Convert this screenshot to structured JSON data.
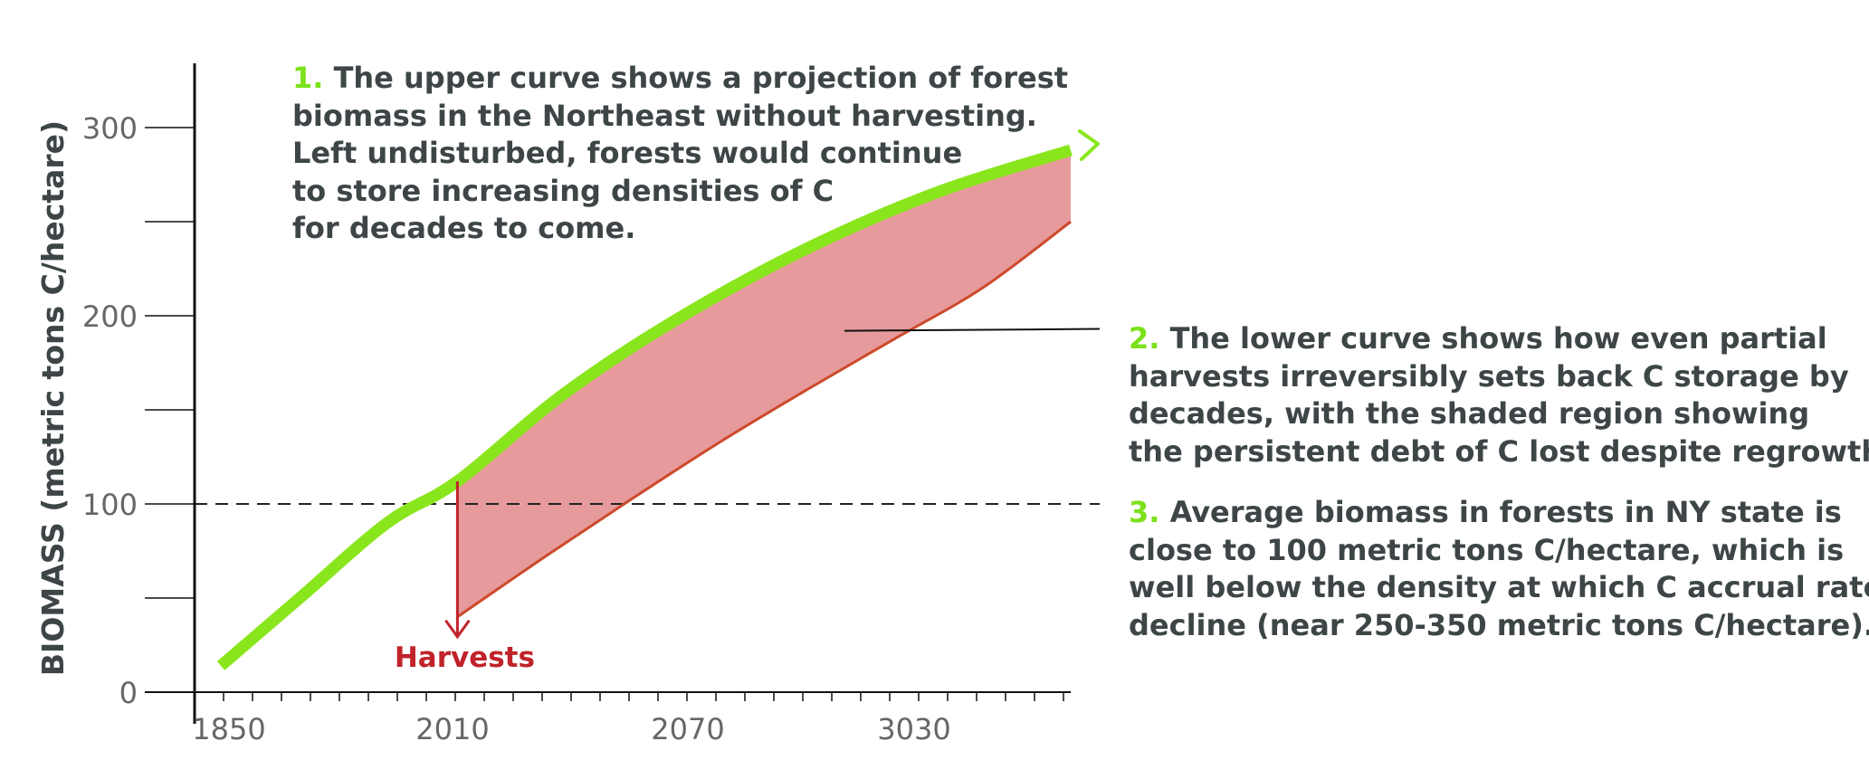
{
  "chart_data": {
    "type": "area",
    "title": "",
    "xlabel": "",
    "ylabel": "BIOMASS (metric tons C/hectare)",
    "x_ticks": [
      "1850",
      "2010",
      "2070",
      "3030"
    ],
    "y_ticks": [
      0,
      100,
      200,
      300
    ],
    "ylim": [
      0,
      300
    ],
    "reference_line": {
      "y": 100,
      "style": "dashed"
    },
    "series": [
      {
        "key": "upper",
        "color": "#8ae61c",
        "points": [
          [
            0.03,
            14
          ],
          [
            0.12,
            50
          ],
          [
            0.22,
            90
          ],
          [
            0.3,
            112
          ],
          [
            0.42,
            158
          ],
          [
            0.55,
            198
          ],
          [
            0.7,
            236
          ],
          [
            0.85,
            266
          ],
          [
            1.0,
            288
          ]
        ]
      },
      {
        "key": "lower",
        "color": "#cc4a2c",
        "points": [
          [
            0.3,
            40
          ],
          [
            0.4,
            72
          ],
          [
            0.5,
            103
          ],
          [
            0.6,
            133
          ],
          [
            0.7,
            161
          ],
          [
            0.8,
            188
          ],
          [
            0.9,
            215
          ],
          [
            1.0,
            250
          ]
        ]
      }
    ],
    "shaded_region": {
      "between": [
        "upper",
        "lower"
      ],
      "from_x": 0.3,
      "to_x": 1.0,
      "color": "#e79a9b"
    },
    "annotation": {
      "label": "Harvests",
      "color": "#c0232a",
      "x": 0.3,
      "from_y": 112,
      "to_y": 40
    }
  },
  "notes": [
    {
      "num": "1.",
      "lines": [
        "The upper curve shows a projection of forest",
        "biomass in the Northeast without harvesting.",
        "Left undisturbed, forests would continue",
        "to store increasing densities of C",
        "for decades to come."
      ]
    },
    {
      "num": "2.",
      "lines": [
        "The lower curve shows how even partial",
        "harvests irreversibly sets back C storage by",
        "decades, with the shaded region showing",
        "the persistent debt of C lost despite regrowth."
      ]
    },
    {
      "num": "3.",
      "lines": [
        "Average biomass in forests in NY state is",
        "close to 100 metric tons C/hectare, which is",
        "well below the density at which C accrual rates",
        "decline (near 250-350 metric tons C/hectare)."
      ]
    }
  ]
}
